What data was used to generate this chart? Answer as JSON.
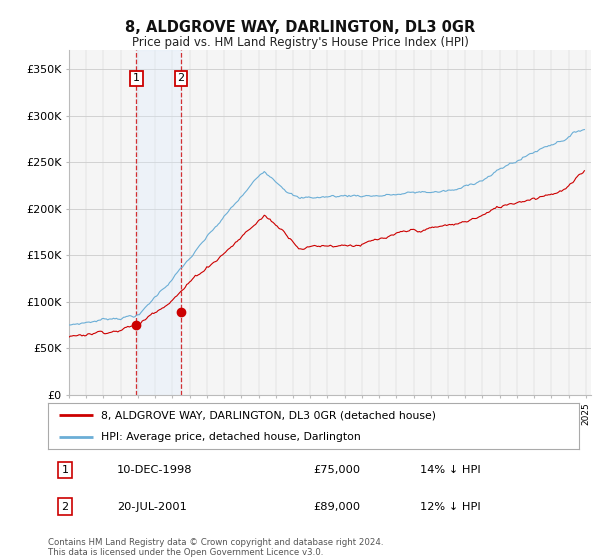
{
  "title": "8, ALDGROVE WAY, DARLINGTON, DL3 0GR",
  "subtitle": "Price paid vs. HM Land Registry's House Price Index (HPI)",
  "ylabel_ticks": [
    "£0",
    "£50K",
    "£100K",
    "£150K",
    "£200K",
    "£250K",
    "£300K",
    "£350K"
  ],
  "ytick_values": [
    0,
    50000,
    100000,
    150000,
    200000,
    250000,
    300000,
    350000
  ],
  "ylim": [
    0,
    370000
  ],
  "legend_line1": "8, ALDGROVE WAY, DARLINGTON, DL3 0GR (detached house)",
  "legend_line2": "HPI: Average price, detached house, Darlington",
  "sale1_date": "10-DEC-1998",
  "sale1_price": 75000,
  "sale2_date": "20-JUL-2001",
  "sale2_price": 89000,
  "sale1_hpi_pct": "14% ↓ HPI",
  "sale2_hpi_pct": "12% ↓ HPI",
  "sale1_price_str": "£75,000",
  "sale2_price_str": "£89,000",
  "hpi_color": "#6baed6",
  "price_color": "#cc0000",
  "shade_color": "#ddeeff",
  "footnote": "Contains HM Land Registry data © Crown copyright and database right 2024.\nThis data is licensed under the Open Government Licence v3.0.",
  "background_color": "#ffffff",
  "grid_color": "#cccccc",
  "chart_bg": "#f5f5f5"
}
